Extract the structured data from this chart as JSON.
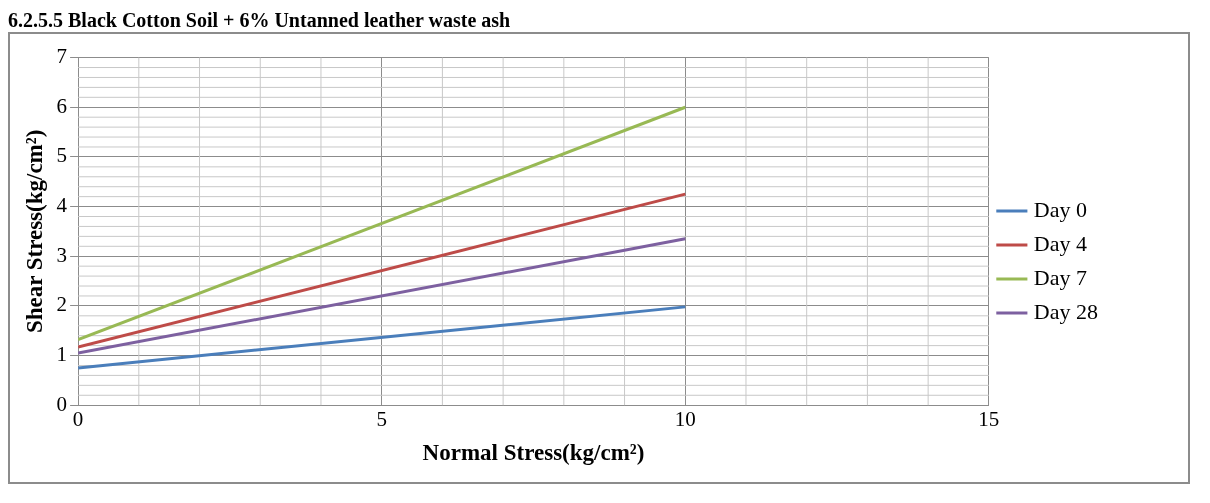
{
  "chart_data": {
    "type": "line",
    "title": "6.2.5.5 Black Cotton Soil + 6% Untanned leather waste ash",
    "xlabel": "Normal Stress(kg/cm²)",
    "ylabel": "Shear Stress(kg/cm²)",
    "x": [
      0,
      10
    ],
    "series": [
      {
        "name": "Day 0",
        "color": "#4a7ebb",
        "values": [
          0.75,
          1.98
        ]
      },
      {
        "name": "Day 4",
        "color": "#be4b48",
        "values": [
          1.17,
          4.25
        ]
      },
      {
        "name": "Day 7",
        "color": "#98b954",
        "values": [
          1.32,
          6.0
        ]
      },
      {
        "name": "Day 28",
        "color": "#7d60a0",
        "values": [
          1.05,
          3.35
        ]
      }
    ],
    "xlim": [
      0,
      15
    ],
    "xticks": [
      0,
      5,
      10,
      15
    ],
    "ylim": [
      0,
      7
    ],
    "yticks": [
      0,
      1,
      2,
      3,
      4,
      5,
      6,
      7
    ],
    "grid": true,
    "legend": "right",
    "marker": "none",
    "line_style": "solid"
  }
}
